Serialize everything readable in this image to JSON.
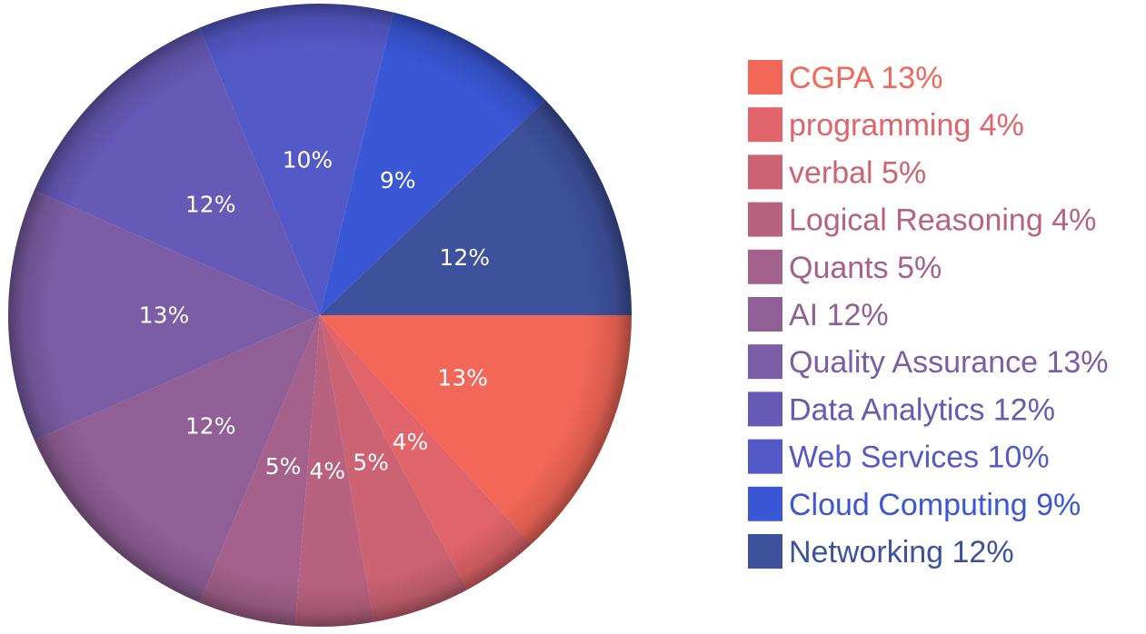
{
  "chart_data": {
    "type": "pie",
    "title": "",
    "legend_position": "right",
    "slices": [
      {
        "label": "CGPA",
        "value": 13,
        "display": "13%",
        "color": "#F36758"
      },
      {
        "label": "programming",
        "value": 4,
        "display": "4%",
        "color": "#E0646A"
      },
      {
        "label": "verbal",
        "value": 5,
        "display": "5%",
        "color": "#CC6373"
      },
      {
        "label": "Logical Reasoning",
        "value": 4,
        "display": "4%",
        "color": "#B8627F"
      },
      {
        "label": "Quants",
        "value": 5,
        "display": "5%",
        "color": "#A4618B"
      },
      {
        "label": "AI",
        "value": 12,
        "display": "12%",
        "color": "#8F5F96"
      },
      {
        "label": "Quality Assurance",
        "value": 13,
        "display": "13%",
        "color": "#7B5DA5"
      },
      {
        "label": "Data Analytics",
        "value": 12,
        "display": "12%",
        "color": "#6759B6"
      },
      {
        "label": "Web Services",
        "value": 10,
        "display": "10%",
        "color": "#5459C8"
      },
      {
        "label": "Cloud Computing",
        "value": 9,
        "display": "9%",
        "color": "#3A57D6"
      },
      {
        "label": "Networking",
        "value": 12,
        "display": "12%",
        "color": "#3E519D"
      }
    ]
  }
}
